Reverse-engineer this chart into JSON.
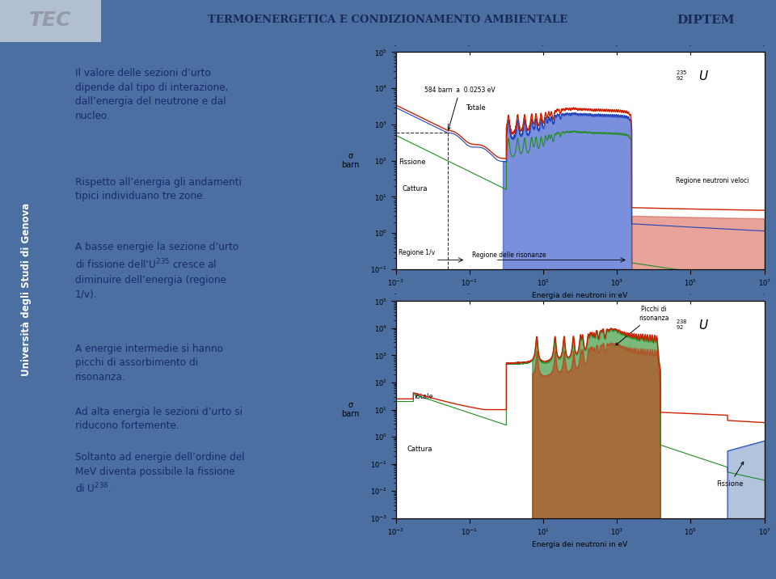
{
  "bg_outer": "#4a6fa0",
  "bg_header": "#c8d8e8",
  "bg_main": "#c0d4e8",
  "bg_sidebar": "#2a4878",
  "bg_text_panel": "#b0c8dc",
  "bg_plot_area": "#c8dce8",
  "header_title": "TERMOENERGETICA E CONDIZIONAMENTO AMBIENTALE",
  "header_left": "TEC",
  "header_right": "DIPTEM",
  "sidebar_text": "Università degli Studi di Genova",
  "text_color": "#1a2a70",
  "plot1_xlabel": "Energia dei neutroni in eV",
  "plot1_ylabel": "σ\nbarn",
  "plot2_xlabel": "Energia dei neutroni in eV",
  "plot2_ylabel": "σ\nbarn",
  "plot1_title": "$^{235}_{92}U$",
  "plot2_title": "$^{238}_{92}U$",
  "color_red": "#cc2200",
  "color_blue": "#0000bb",
  "color_green": "#228B22",
  "paragraphs": [
    "Il valore delle sezioni d’urto\ndipende dal tipo di interazione,\ndall’energia del neutrone e dal\nnucleo.",
    "Rispetto all’energia gli andamenti\ntipici individuano tre zone.",
    "A basse energie la sezione d’urto\ndi fissione dell’U$^{235}$ cresce al\ndiminuire dell’energia (regione\n1/v).",
    "A energie intermedie si hanno\npicchi di assorbimento di\nrisonanza.",
    "Ad alta energia le sezioni d’urto si\nriducono fortemente.",
    "Soltanto ad energie dell’ordine del\nMeV diventa possibile la fissione\ndi U$^{238}$."
  ]
}
